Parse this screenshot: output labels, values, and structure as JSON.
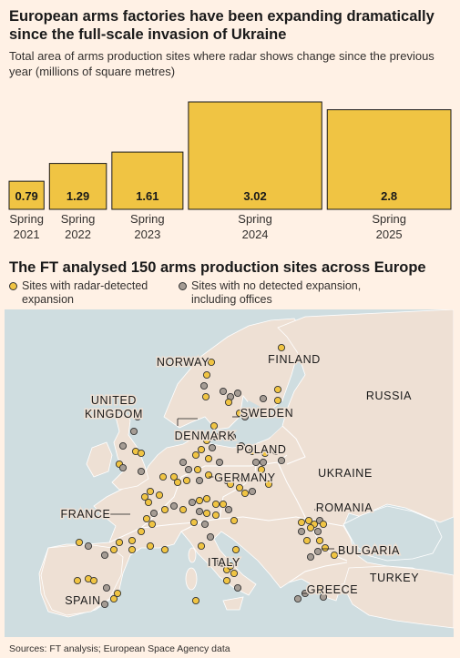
{
  "header": {
    "title": "European arms factories have been expanding dramatically since the full-scale invasion of Ukraine",
    "subtitle": "Total area of arms production sites where radar shows change since the previous year (millions of square metres)"
  },
  "chart_data": {
    "type": "bar",
    "title": "",
    "categories": [
      "Spring 2021",
      "Spring 2022",
      "Spring 2023",
      "Spring 2024",
      "Spring 2025"
    ],
    "category_lines": [
      [
        "Spring",
        "2021"
      ],
      [
        "Spring",
        "2022"
      ],
      [
        "Spring",
        "2023"
      ],
      [
        "Spring",
        "2024"
      ],
      [
        "Spring",
        "2025"
      ]
    ],
    "values": [
      0.79,
      1.29,
      1.61,
      3.02,
      2.8
    ],
    "value_labels": [
      "0.79",
      "1.29",
      "1.61",
      "3.02",
      "2.8"
    ],
    "relative_widths": [
      0.79,
      1.29,
      1.61,
      3.02,
      2.8
    ],
    "ylim": [
      0,
      3.02
    ],
    "colors": {
      "bar": "#f0c443",
      "bar_border": "#1a1a1a"
    }
  },
  "map": {
    "title": "The FT analysed 150 arms production sites across Europe",
    "legend": [
      {
        "label_lines": [
          "Sites with radar-detected",
          "expansion"
        ],
        "color": "#f0c443"
      },
      {
        "label_lines": [
          "Sites with no detected expansion,",
          "including offices"
        ],
        "color": "#a59c94"
      }
    ],
    "country_labels": [
      {
        "lines": [
          "NORWAY"
        ]
      },
      {
        "lines": [
          "FINLAND"
        ]
      },
      {
        "lines": [
          "UNITED",
          "KINGDOM"
        ]
      },
      {
        "lines": [
          "DENMARK"
        ]
      },
      {
        "lines": [
          "SWEDEN"
        ]
      },
      {
        "lines": [
          "RUSSIA"
        ]
      },
      {
        "lines": [
          "POLAND"
        ]
      },
      {
        "lines": [
          "GERMANY"
        ]
      },
      {
        "lines": [
          "UKRAINE"
        ]
      },
      {
        "lines": [
          "FRANCE"
        ]
      },
      {
        "lines": [
          "ROMANIA"
        ]
      },
      {
        "lines": [
          "BULGARIA"
        ]
      },
      {
        "lines": [
          "ITALY"
        ]
      },
      {
        "lines": [
          "TURKEY"
        ]
      },
      {
        "lines": [
          "GREECE"
        ]
      },
      {
        "lines": [
          "SPAIN"
        ]
      }
    ],
    "colors": {
      "sea": "#cfdde0",
      "land": "#eee0d4",
      "border": "#ffffff",
      "expansion": "#f0c443",
      "no_expansion": "#a59c94"
    }
  },
  "footer": {
    "source": "Sources: FT analysis; European Space Agency data"
  }
}
